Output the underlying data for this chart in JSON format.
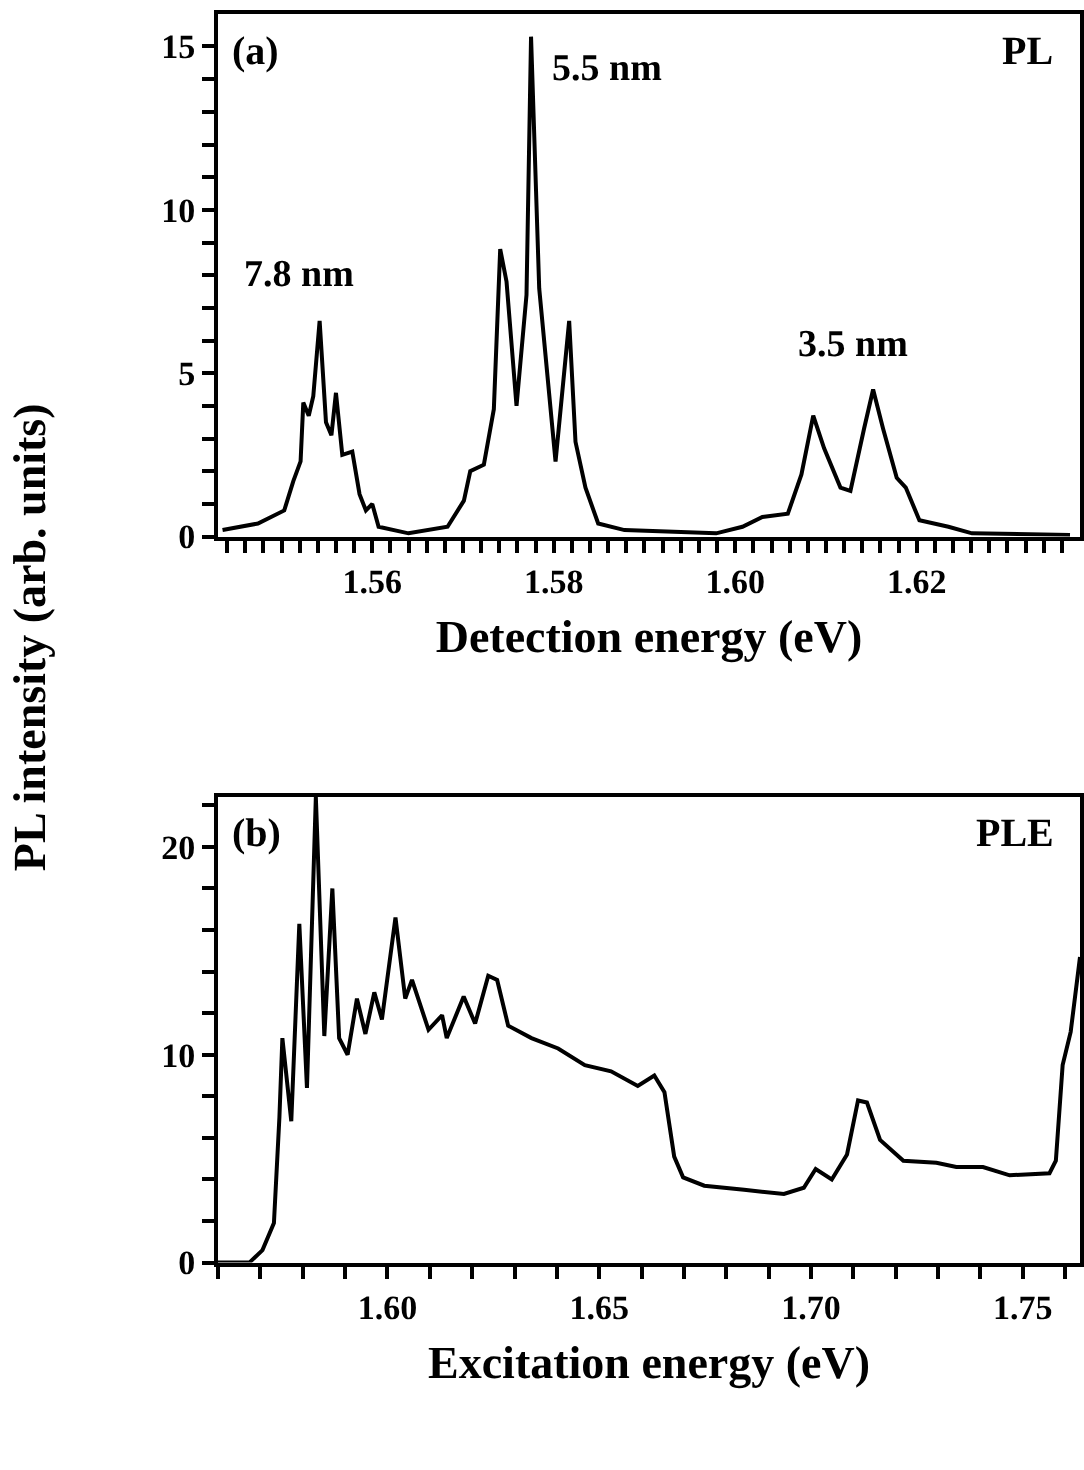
{
  "chart_data": [
    {
      "type": "line",
      "xlabel": "Detection energy (eV)",
      "ylabel": "PL intensity (arb. units)",
      "annotations": [
        "(a)",
        "PL",
        {
          "text": "7.8 nm",
          "x": 1.5542,
          "y": 6.6
        },
        {
          "text": "5.5 nm",
          "x": 1.5775,
          "y": 15.3
        },
        {
          "text": "3.5 nm",
          "x": 1.6152,
          "y": 4.5
        }
      ],
      "series": [
        {
          "color": "#000000",
          "x": [
            1.5435,
            1.5474,
            1.5503,
            1.5513,
            1.5521,
            1.5524,
            1.553,
            1.5535,
            1.5542,
            1.5549,
            1.5555,
            1.556,
            1.5567,
            1.5578,
            1.5586,
            1.5593,
            1.56,
            1.5607,
            1.564,
            1.5683,
            1.5701,
            1.5708,
            1.5723,
            1.5734,
            1.5741,
            1.5748,
            1.5759,
            1.577,
            1.5775,
            1.5784,
            1.5802,
            1.5817,
            1.5824,
            1.5835,
            1.5849,
            1.5878,
            1.5979,
            1.6008,
            1.603,
            1.6058,
            1.6073,
            1.6086,
            1.6098,
            1.6116,
            1.6127,
            1.6142,
            1.6152,
            1.6163,
            1.6178,
            1.6188,
            1.6203,
            1.6235,
            1.6261,
            1.6369
          ],
          "values": [
            0.2,
            0.4,
            0.8,
            1.7,
            2.3,
            4.1,
            3.7,
            4.3,
            6.6,
            3.5,
            3.1,
            4.4,
            2.5,
            2.6,
            1.3,
            0.8,
            1.0,
            0.3,
            0.1,
            0.3,
            1.1,
            2.0,
            2.2,
            3.9,
            8.8,
            7.8,
            4.0,
            7.4,
            15.3,
            7.6,
            2.3,
            6.6,
            2.9,
            1.5,
            0.4,
            0.2,
            0.1,
            0.3,
            0.6,
            0.7,
            1.9,
            3.7,
            2.7,
            1.5,
            1.4,
            3.3,
            4.5,
            3.3,
            1.8,
            1.5,
            0.5,
            0.3,
            0.1,
            0.05
          ]
        }
      ],
      "xlim": [
        1.543,
        1.638
      ],
      "ylim": [
        0,
        16.0
      ],
      "xticks": [
        {
          "value": 1.544,
          "label": null
        },
        {
          "value": 1.546,
          "label": null
        },
        {
          "value": 1.548,
          "label": null
        },
        {
          "value": 1.55,
          "label": null
        },
        {
          "value": 1.552,
          "label": null
        },
        {
          "value": 1.554,
          "label": null
        },
        {
          "value": 1.556,
          "label": null
        },
        {
          "value": 1.558,
          "label": null
        },
        {
          "value": 1.56,
          "label": "1.56"
        },
        {
          "value": 1.562,
          "label": null
        },
        {
          "value": 1.564,
          "label": null
        },
        {
          "value": 1.566,
          "label": null
        },
        {
          "value": 1.568,
          "label": null
        },
        {
          "value": 1.57,
          "label": null
        },
        {
          "value": 1.572,
          "label": null
        },
        {
          "value": 1.574,
          "label": null
        },
        {
          "value": 1.576,
          "label": null
        },
        {
          "value": 1.578,
          "label": null
        },
        {
          "value": 1.58,
          "label": "1.58"
        },
        {
          "value": 1.582,
          "label": null
        },
        {
          "value": 1.584,
          "label": null
        },
        {
          "value": 1.586,
          "label": null
        },
        {
          "value": 1.588,
          "label": null
        },
        {
          "value": 1.59,
          "label": null
        },
        {
          "value": 1.592,
          "label": null
        },
        {
          "value": 1.594,
          "label": null
        },
        {
          "value": 1.596,
          "label": null
        },
        {
          "value": 1.598,
          "label": null
        },
        {
          "value": 1.6,
          "label": "1.60"
        },
        {
          "value": 1.602,
          "label": null
        },
        {
          "value": 1.604,
          "label": null
        },
        {
          "value": 1.606,
          "label": null
        },
        {
          "value": 1.608,
          "label": null
        },
        {
          "value": 1.61,
          "label": null
        },
        {
          "value": 1.612,
          "label": null
        },
        {
          "value": 1.614,
          "label": null
        },
        {
          "value": 1.616,
          "label": null
        },
        {
          "value": 1.618,
          "label": null
        },
        {
          "value": 1.62,
          "label": "1.62"
        },
        {
          "value": 1.622,
          "label": null
        },
        {
          "value": 1.624,
          "label": null
        },
        {
          "value": 1.626,
          "label": null
        },
        {
          "value": 1.628,
          "label": null
        },
        {
          "value": 1.63,
          "label": null
        },
        {
          "value": 1.632,
          "label": null
        },
        {
          "value": 1.634,
          "label": null
        },
        {
          "value": 1.636,
          "label": null
        }
      ],
      "yticks": [
        0,
        {
          "value": 1,
          "label": null
        },
        {
          "value": 2,
          "label": null
        },
        {
          "value": 3,
          "label": null
        },
        {
          "value": 4,
          "label": null
        },
        5,
        {
          "value": 6,
          "label": null
        },
        {
          "value": 7,
          "label": null
        },
        {
          "value": 8,
          "label": null
        },
        {
          "value": 9,
          "label": null
        },
        10,
        {
          "value": 11,
          "label": null
        },
        {
          "value": 12,
          "label": null
        },
        {
          "value": 13,
          "label": null
        },
        {
          "value": 14,
          "label": null
        },
        15
      ]
    },
    {
      "type": "line",
      "xlabel": "Excitation energy (eV)",
      "annotations": [
        "(b)",
        "PLE"
      ],
      "series": [
        {
          "color": "#000000",
          "x": [
            1.56,
            1.5674,
            1.5705,
            1.5732,
            1.5745,
            1.5752,
            1.5773,
            1.5792,
            1.581,
            1.5831,
            1.5851,
            1.587,
            1.5886,
            1.5906,
            1.5928,
            1.5948,
            1.5969,
            1.5987,
            1.6019,
            1.6042,
            1.6058,
            1.6097,
            1.6129,
            1.614,
            1.618,
            1.6207,
            1.6238,
            1.6259,
            1.6285,
            1.634,
            1.6403,
            1.6466,
            1.6528,
            1.6591,
            1.663,
            1.6654,
            1.6677,
            1.6698,
            1.6748,
            1.6842,
            1.6936,
            1.6983,
            1.7011,
            1.7049,
            1.7085,
            1.7111,
            1.7132,
            1.7163,
            1.7218,
            1.7296,
            1.7343,
            1.7406,
            1.7469,
            1.7563,
            1.7578,
            1.7594,
            1.7613,
            1.7635
          ],
          "values": [
            0,
            0,
            0.6,
            1.9,
            7.0,
            10.8,
            6.8,
            16.3,
            8.4,
            22.4,
            10.9,
            18.0,
            10.8,
            10.0,
            12.7,
            11.0,
            13.0,
            11.7,
            16.6,
            12.7,
            13.6,
            11.2,
            11.9,
            10.8,
            12.8,
            11.5,
            13.8,
            13.6,
            11.4,
            10.8,
            10.3,
            9.5,
            9.2,
            8.5,
            9.0,
            8.2,
            5.1,
            4.1,
            3.7,
            3.5,
            3.3,
            3.6,
            4.5,
            4.0,
            5.2,
            7.8,
            7.7,
            5.9,
            4.9,
            4.8,
            4.6,
            4.6,
            4.2,
            4.3,
            4.9,
            9.5,
            11.1,
            14.7
          ]
        }
      ],
      "xlim": [
        1.56,
        1.7635
      ],
      "ylim": [
        0,
        22.4
      ],
      "xticks": [
        {
          "value": 1.56,
          "label": null
        },
        {
          "value": 1.57,
          "label": null
        },
        {
          "value": 1.58,
          "label": null
        },
        {
          "value": 1.59,
          "label": null
        },
        {
          "value": 1.6,
          "label": "1.60"
        },
        {
          "value": 1.61,
          "label": null
        },
        {
          "value": 1.62,
          "label": null
        },
        {
          "value": 1.63,
          "label": null
        },
        {
          "value": 1.64,
          "label": null
        },
        {
          "value": 1.65,
          "label": "1.65"
        },
        {
          "value": 1.66,
          "label": null
        },
        {
          "value": 1.67,
          "label": null
        },
        {
          "value": 1.68,
          "label": null
        },
        {
          "value": 1.69,
          "label": null
        },
        {
          "value": 1.7,
          "label": "1.70"
        },
        {
          "value": 1.71,
          "label": null
        },
        {
          "value": 1.72,
          "label": null
        },
        {
          "value": 1.73,
          "label": null
        },
        {
          "value": 1.74,
          "label": null
        },
        {
          "value": 1.75,
          "label": "1.75"
        },
        {
          "value": 1.76,
          "label": null
        }
      ],
      "yticks": [
        0,
        {
          "value": 2,
          "label": null
        },
        {
          "value": 4,
          "label": null
        },
        {
          "value": 6,
          "label": null
        },
        {
          "value": 8,
          "label": null
        },
        10,
        {
          "value": 12,
          "label": null
        },
        {
          "value": 14,
          "label": null
        },
        {
          "value": 16,
          "label": null
        },
        {
          "value": 18,
          "label": null
        },
        20,
        {
          "value": 22,
          "label": null
        }
      ]
    }
  ]
}
